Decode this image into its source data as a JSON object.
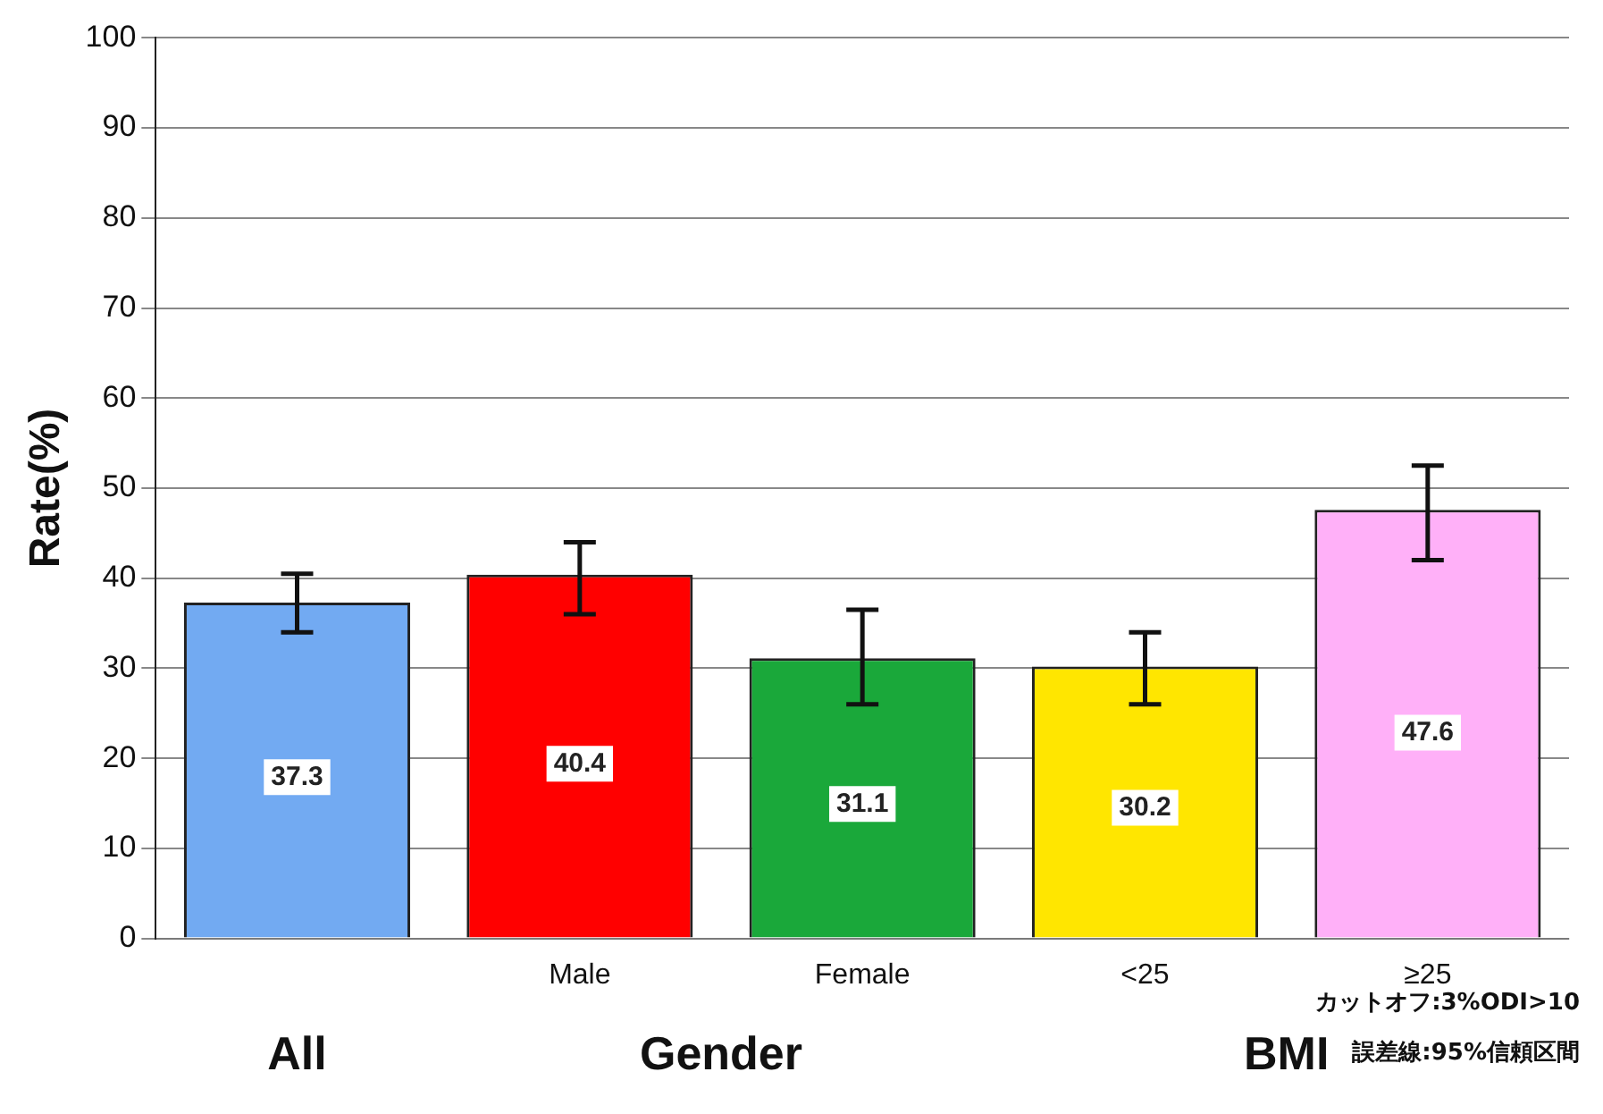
{
  "chart_data": {
    "type": "bar",
    "ylabel": "Rate(%)",
    "categories": [
      null,
      "Male",
      "Female",
      "<25",
      "≥25"
    ],
    "values": [
      37.3,
      40.4,
      31.1,
      30.2,
      47.6
    ],
    "colors": [
      "#72aaf2",
      "#ff0000",
      "#1aa83a",
      "#ffe600",
      "#ffb0f8"
    ],
    "errors": [
      [
        34,
        40.5
      ],
      [
        36,
        44
      ],
      [
        26,
        36.5
      ],
      [
        26,
        34
      ],
      [
        42,
        52.5
      ]
    ],
    "data_labels": true,
    "ylim": [
      0,
      100
    ],
    "yticks": [
      0,
      10,
      20,
      30,
      40,
      50,
      60,
      70,
      80,
      90,
      100
    ],
    "grid": "y",
    "legend": false,
    "annotations": [
      "All",
      "Gender",
      "BMI",
      "カットオフ:3%ODI>10",
      "誤差線:95%信頼区間"
    ]
  }
}
